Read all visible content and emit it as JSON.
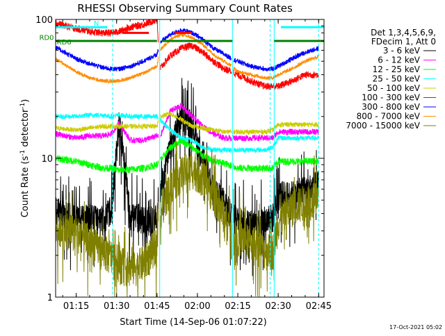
{
  "chart_data": {
    "type": "line",
    "title": "RHESSI Observing Summary Count Rates",
    "xlabel": "Start Time (14-Sep-06 01:07:22)",
    "ylabel": "Count Rate (s⁻¹ detector⁻¹)",
    "ylabel_parts": [
      "Count Rate (s",
      "-1",
      " detector",
      "-1",
      ")"
    ],
    "y_scale": "log",
    "ylim": [
      1,
      100
    ],
    "y_ticks": [
      1,
      10,
      100
    ],
    "y_tick_labels": [
      "1",
      "10",
      "100"
    ],
    "xlim": [
      "01:07:22",
      "02:47:00"
    ],
    "x_ticks": [
      "01:15",
      "01:30",
      "01:45",
      "02:00",
      "02:15",
      "02:30",
      "02:45"
    ],
    "x_tick_labels": [
      "01:15",
      "01:30",
      "01:45",
      "02:00",
      "02:15",
      "02:30",
      "02:45"
    ],
    "grid": false,
    "legend_position": "right",
    "legend_header": [
      "Det 1,3,4,5,6,9,",
      "FDecim 1, Att 0"
    ],
    "footer_stamp": "17-Oct-2021 05:02",
    "vertical_markers": [
      {
        "time": "01:28:30",
        "color": "#00ffff",
        "style": "dashed"
      },
      {
        "time": "01:46:00",
        "color": "#00ffff",
        "style": "solid"
      },
      {
        "time": "02:13:00",
        "color": "#00ffff",
        "style": "solid"
      },
      {
        "time": "02:27:00",
        "color": "#00ffff",
        "style": "dashed"
      },
      {
        "time": "02:28:30",
        "color": "#00ffff",
        "style": "solid"
      },
      {
        "time": "02:45:00",
        "color": "#00ffff",
        "style": "dashed"
      }
    ],
    "annotations": [
      {
        "text": "N",
        "time": "01:22:30",
        "value": 90,
        "color": "#00ffff",
        "bar": [
          [
            "01:07:22",
            "01:26:30"
          ],
          [
            "02:31:00",
            "02:47:00"
          ]
        ],
        "bar_value": 88
      },
      {
        "text": "F",
        "time": "01:34:30",
        "value": 80,
        "color": "#ff0000",
        "bar": [
          [
            "01:32:00",
            "01:42:00"
          ],
          [
            "01:51:30",
            "01:58:00"
          ]
        ],
        "bar_value": 80
      },
      {
        "text": "RD0",
        "time": "01:04:00",
        "value": 71,
        "color": "#008000",
        "bar": [
          [
            "01:07:22",
            "01:45:00"
          ],
          [
            "01:47:00",
            "02:13:00"
          ],
          [
            "02:28:30",
            "02:47:00"
          ]
        ],
        "bar_value": 70
      },
      {
        "text": "RD6",
        "time": "01:10:30",
        "value": 66,
        "color": "#008000"
      }
    ],
    "time_nodes": [
      "01:07:22",
      "01:15",
      "01:20",
      "01:25",
      "01:28",
      "01:31",
      "01:35",
      "01:40",
      "01:45",
      "01:46",
      "01:50",
      "01:54",
      "01:58",
      "02:02",
      "02:06",
      "02:10",
      "02:13",
      "02:15",
      "02:20",
      "02:25",
      "02:28",
      "02:30",
      "02:35",
      "02:40",
      "02:45"
    ],
    "gaps": [
      [
        "01:45:30",
        "01:46:15"
      ],
      [
        "02:12:40",
        "02:13:20"
      ]
    ],
    "series": [
      {
        "name": "3 - 6 keV",
        "color": "#000000",
        "noise": 0.25,
        "spiky": true,
        "values": [
          4.3,
          3.6,
          3.8,
          3.6,
          4.5,
          18,
          4.0,
          3.6,
          3.6,
          6.0,
          12,
          20,
          18,
          10,
          6,
          4.8,
          3.8,
          3.6,
          3.4,
          3.6,
          3.8,
          5.5,
          5.5,
          6.0,
          6.5
        ]
      },
      {
        "name": "6 - 12 keV",
        "color": "#ff00ff",
        "noise": 0.05,
        "values": [
          15,
          14,
          14.5,
          14.5,
          15,
          18,
          13.5,
          13.5,
          14.5,
          14,
          22,
          24,
          20,
          17,
          15,
          14,
          14,
          14,
          14,
          14,
          14,
          15.5,
          15.5,
          15.5,
          15.5
        ]
      },
      {
        "name": "12 - 25 keV",
        "color": "#00ff00",
        "noise": 0.06,
        "values": [
          10,
          9.5,
          9,
          8.5,
          8.5,
          8.2,
          8.3,
          8.5,
          9.0,
          9.5,
          12,
          13.5,
          12,
          10.5,
          9.5,
          9.2,
          8.8,
          8.5,
          8.5,
          8.5,
          8.5,
          9.5,
          9.5,
          9.5,
          9.5
        ]
      },
      {
        "name": "25 - 50 keV",
        "color": "#00ffff",
        "noise": 0.04,
        "values": [
          20,
          20,
          20.5,
          20.5,
          20,
          20.5,
          20,
          20,
          20,
          19,
          16,
          14,
          13.5,
          12,
          11.5,
          11.5,
          11.5,
          11.5,
          11.5,
          11.5,
          12,
          14,
          14,
          14,
          14
        ]
      },
      {
        "name": "50 - 100 keV",
        "color": "#cccc00",
        "noise": 0.04,
        "values": [
          16.5,
          16,
          16.5,
          17,
          17,
          17,
          17,
          17,
          17,
          20,
          21,
          19,
          17,
          16.5,
          16,
          15.5,
          15.5,
          15.5,
          15.5,
          15.5,
          16,
          17.5,
          17.5,
          17.5,
          17.5
        ]
      },
      {
        "name": "100 - 300 keV",
        "color": "#ff0000",
        "noise": 0.06,
        "values": [
          94,
          86,
          82,
          80,
          80,
          82,
          88,
          92,
          100,
          44,
          55,
          62,
          65,
          58,
          50,
          44,
          42,
          40,
          36,
          33,
          33,
          33,
          36,
          40,
          40
        ]
      },
      {
        "name": "300 - 800 keV",
        "color": "#0000ff",
        "noise": 0.04,
        "values": [
          63,
          52,
          48,
          45,
          44,
          44,
          46,
          50,
          56,
          68,
          78,
          84,
          80,
          72,
          62,
          56,
          52,
          50,
          46,
          44,
          44,
          46,
          52,
          58,
          62
        ]
      },
      {
        "name": "800 - 7000 keV",
        "color": "#ff8c00",
        "noise": 0.03,
        "values": [
          52,
          42,
          38,
          36,
          36,
          36,
          38,
          41,
          46,
          60,
          72,
          78,
          74,
          66,
          56,
          50,
          46,
          42,
          40,
          38,
          38,
          40,
          44,
          50,
          54
        ]
      },
      {
        "name": "7000 - 15000 keV",
        "color": "#808000",
        "noise": 0.3,
        "spiky": true,
        "values": [
          3.2,
          3.0,
          2.5,
          2.2,
          2.0,
          1.8,
          1.6,
          1.8,
          2.5,
          4.0,
          6.5,
          8.0,
          8.5,
          7.5,
          5.5,
          4.0,
          3.0,
          2.8,
          2.5,
          2.2,
          2.2,
          3.5,
          4.5,
          5.0,
          5.2
        ]
      }
    ]
  }
}
